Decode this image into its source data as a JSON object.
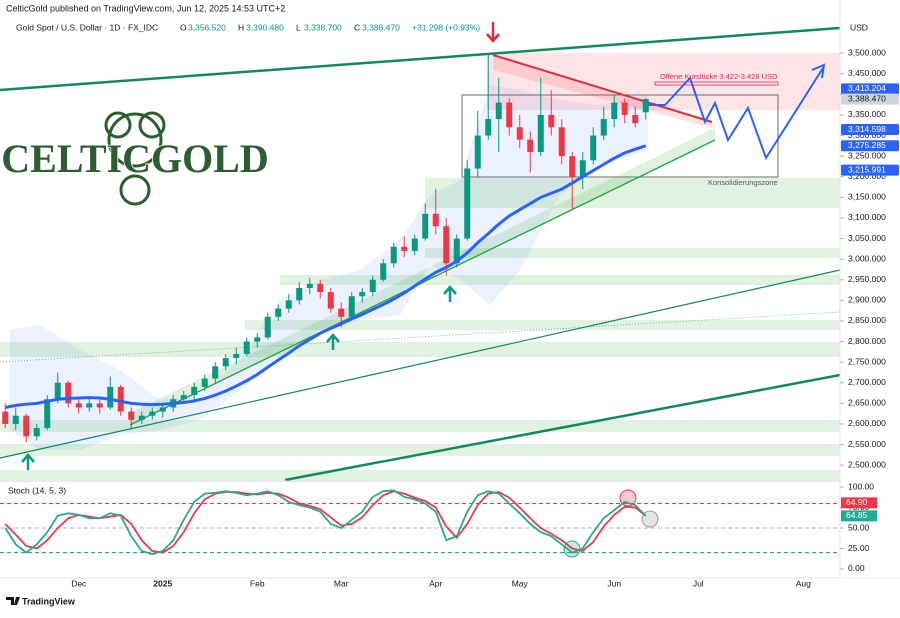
{
  "header": {
    "published": "CelticGold published on TradingView.com, Jun 12, 2025 14:53 UTC+2",
    "legend_title": "Gold Spot / U.S. Dollar · 1D · FX_IDC",
    "ohlc": [
      {
        "key": "O",
        "label": "3,356.520"
      },
      {
        "key": "H",
        "label": "3,390.480"
      },
      {
        "key": "L",
        "label": "3,338.700"
      },
      {
        "key": "C",
        "label": "3,388.470"
      }
    ],
    "change": "+31.298 (+0.93%)",
    "currency": "USD"
  },
  "logo": "CELTICGOLD",
  "footer": "TradingView",
  "chart_data": {
    "type": "candlestick",
    "categories": [
      null,
      null,
      null,
      null,
      null,
      null,
      null,
      "Dec",
      null,
      null,
      null,
      null,
      null,
      null,
      null,
      "2025",
      null,
      null,
      null,
      null,
      null,
      null,
      null,
      null,
      "Feb",
      null,
      null,
      null,
      null,
      null,
      null,
      null,
      "Mar",
      null,
      null,
      null,
      null,
      null,
      null,
      null,
      null,
      "Apr",
      null,
      null,
      null,
      null,
      null,
      null,
      null,
      "May",
      null,
      null,
      null,
      null,
      null,
      null,
      null,
      null,
      "Jun",
      null,
      null,
      null,
      null,
      null,
      null,
      null,
      "Jul",
      null,
      null,
      null,
      null,
      null,
      null,
      null,
      null,
      null,
      "Aug",
      null,
      null,
      null
    ],
    "candles": {
      "up_color": "#089981",
      "down_color": "#f23645",
      "open": [
        2630,
        2600,
        2620,
        2570,
        2590,
        2660,
        2700,
        2650,
        2640,
        2650,
        2640,
        2690,
        2630,
        2610,
        2620,
        2630,
        2640,
        2660,
        2670,
        2690,
        2710,
        2740,
        2760,
        2770,
        2800,
        2810,
        2860,
        2880,
        2900,
        2930,
        2940,
        2920,
        2880,
        2860,
        2910,
        2920,
        2950,
        2990,
        3030,
        3020,
        3050,
        3110,
        3080,
        2990,
        3050,
        3220,
        3300,
        3340,
        3380,
        3320,
        3290,
        3260,
        3350,
        3320,
        3250,
        3200,
        3240,
        3300,
        3340,
        3380,
        3350,
        3356.52,
        null,
        null,
        null,
        null,
        null,
        null,
        null,
        null,
        null,
        null,
        null,
        null,
        null,
        null,
        null,
        null,
        null,
        null
      ],
      "high": [
        2650,
        2640,
        2625,
        2600,
        2670,
        2725,
        2705,
        2665,
        2665,
        2660,
        2715,
        2695,
        2640,
        2630,
        2640,
        2650,
        2670,
        2680,
        2700,
        2720,
        2750,
        2770,
        2785,
        2810,
        2820,
        2870,
        2890,
        2915,
        2945,
        2955,
        2950,
        2930,
        2895,
        2920,
        2930,
        2960,
        3000,
        3040,
        3055,
        3060,
        3135,
        3170,
        3100,
        3060,
        3240,
        3360,
        3500,
        3440,
        3390,
        3350,
        3310,
        3440,
        3410,
        3340,
        3260,
        3260,
        3320,
        3370,
        3400,
        3390,
        3370,
        3390.48,
        null,
        null,
        null,
        null,
        null,
        null,
        null,
        null,
        null,
        null,
        null,
        null,
        null,
        null,
        null,
        null,
        null,
        null
      ],
      "low": [
        2590,
        2585,
        2555,
        2560,
        2585,
        2650,
        2640,
        2625,
        2630,
        2625,
        2635,
        2620,
        2590,
        2600,
        2610,
        2615,
        2630,
        2650,
        2660,
        2680,
        2700,
        2730,
        2745,
        2765,
        2785,
        2805,
        2850,
        2870,
        2890,
        2915,
        2905,
        2870,
        2835,
        2855,
        2895,
        2910,
        2945,
        2980,
        3005,
        3010,
        3045,
        3060,
        2960,
        2980,
        3045,
        3200,
        3290,
        3260,
        3300,
        3270,
        3210,
        3250,
        3300,
        3230,
        3120,
        3170,
        3230,
        3290,
        3320,
        3330,
        3320,
        3338.7,
        null,
        null,
        null,
        null,
        null,
        null,
        null,
        null,
        null,
        null,
        null,
        null,
        null,
        null,
        null,
        null,
        null,
        null
      ],
      "close": [
        2600,
        2620,
        2570,
        2590,
        2660,
        2700,
        2650,
        2640,
        2650,
        2640,
        2690,
        2630,
        2610,
        2620,
        2630,
        2640,
        2660,
        2670,
        2690,
        2710,
        2740,
        2760,
        2770,
        2800,
        2810,
        2860,
        2880,
        2900,
        2930,
        2940,
        2920,
        2880,
        2860,
        2910,
        2920,
        2950,
        2990,
        3030,
        3020,
        3050,
        3110,
        3080,
        2990,
        3050,
        3220,
        3300,
        3340,
        3380,
        3320,
        3290,
        3260,
        3350,
        3320,
        3250,
        3200,
        3240,
        3300,
        3340,
        3380,
        3350,
        3330,
        3388.47,
        null,
        null,
        null,
        null,
        null,
        null,
        null,
        null,
        null,
        null,
        null,
        null,
        null,
        null,
        null,
        null,
        null,
        null
      ]
    },
    "sma": {
      "color": "#2962ff",
      "values": [
        2640,
        2645,
        2648,
        2650,
        2655,
        2660,
        2662,
        2663,
        2664,
        2663,
        2660,
        2655,
        2650,
        2648,
        2647,
        2648,
        2650,
        2652,
        2656,
        2662,
        2670,
        2680,
        2692,
        2705,
        2720,
        2738,
        2755,
        2772,
        2790,
        2805,
        2820,
        2832,
        2843,
        2855,
        2866,
        2878,
        2890,
        2903,
        2918,
        2935,
        2952,
        2968,
        2980,
        2995,
        3015,
        3040,
        3062,
        3085,
        3105,
        3120,
        3135,
        3150,
        3160,
        3170,
        3185,
        3200,
        3215,
        3230,
        3245,
        3258,
        3267,
        3275.285,
        null,
        null,
        null,
        null,
        null,
        null,
        null,
        null,
        null,
        null,
        null,
        null,
        null,
        null,
        null,
        null,
        null,
        null
      ]
    },
    "ylim": [
      2464,
      3629
    ],
    "yticks": [
      {
        "value": 2500,
        "label": "2,500.000"
      },
      {
        "value": 2550,
        "label": "2,550.000"
      },
      {
        "value": 2600,
        "label": "2,600.000"
      },
      {
        "value": 2650,
        "label": "2,650.000"
      },
      {
        "value": 2700,
        "label": "2,700.000"
      },
      {
        "value": 2750,
        "label": "2,750.000"
      },
      {
        "value": 2800,
        "label": "2,800.000"
      },
      {
        "value": 2850,
        "label": "2,850.000"
      },
      {
        "value": 2900,
        "label": "2,900.000"
      },
      {
        "value": 2950,
        "label": "2,950.000"
      },
      {
        "value": 3000,
        "label": "3,000.000"
      },
      {
        "value": 3050,
        "label": "3,050.000"
      },
      {
        "value": 3100,
        "label": "3,100.000"
      },
      {
        "value": 3150,
        "label": "3,150.000"
      },
      {
        "value": 3200,
        "label": "3,200.000"
      },
      {
        "value": 3250,
        "label": "3,250.000"
      },
      {
        "value": 3300,
        "label": "3,300.000"
      },
      {
        "value": 3350,
        "label": "3,350.000"
      },
      {
        "value": 3400,
        "label": "3,400.000"
      },
      {
        "value": 3450,
        "label": "3,450.000"
      },
      {
        "value": 3500,
        "label": "3,500.000"
      }
    ],
    "price_labels": [
      {
        "value": 3413.204,
        "label": "3,413.204",
        "color": "#2962ff",
        "text_color": "#ffffff"
      },
      {
        "value": 3388.47,
        "label": "3,388.470",
        "color": "#d1d4dc",
        "text_color": "#131722"
      },
      {
        "value": 3314.598,
        "label": "3,314.598",
        "color": "#2962ff",
        "text_color": "#ffffff"
      },
      {
        "value": 3275.285,
        "label": "3,275.285",
        "color": "#2962ff",
        "text_color": "#ffffff"
      },
      {
        "value": 3215.991,
        "label": "3,215.991",
        "color": "#2962ff",
        "text_color": "#ffffff"
      }
    ],
    "annotations": {
      "gap": "Offene Kurslücke 3.422-3.428 USD",
      "zone": "Konsolidierungszone"
    },
    "stoch": {
      "title": "Stoch (14, 5, 3)",
      "ylim": [
        -11,
        105
      ],
      "yticks": [
        {
          "value": 100,
          "label": "100.00"
        },
        {
          "value": 75,
          "label": "75.00"
        },
        {
          "value": 50,
          "label": "50.00"
        },
        {
          "value": 25,
          "label": "25.00"
        },
        {
          "value": 0,
          "label": "0.00"
        }
      ],
      "bands": [
        80,
        50,
        20
      ],
      "band_colors": [
        "#f23645",
        "#b2b5be",
        "#089981"
      ],
      "k": {
        "color": "#22ab94",
        "values": [
          50,
          30,
          20,
          30,
          45,
          65,
          68,
          66,
          62,
          62,
          68,
          65,
          40,
          22,
          18,
          22,
          35,
          60,
          82,
          92,
          93,
          95,
          93,
          90,
          92,
          95,
          90,
          82,
          78,
          75,
          70,
          55,
          50,
          60,
          70,
          88,
          95,
          96,
          88,
          85,
          80,
          70,
          35,
          40,
          70,
          90,
          95,
          92,
          80,
          68,
          55,
          45,
          40,
          30,
          20,
          25,
          45,
          62,
          72,
          82,
          78,
          64.85,
          null,
          null,
          null,
          null,
          null,
          null,
          null,
          null,
          null,
          null,
          null,
          null,
          null,
          null,
          null,
          null,
          null,
          null
        ]
      },
      "d": {
        "color": "#f23645",
        "last_label": "64.90",
        "values": [
          55,
          42,
          28,
          25,
          35,
          50,
          62,
          66,
          64,
          62,
          64,
          66,
          55,
          35,
          22,
          20,
          28,
          45,
          68,
          85,
          92,
          94,
          94,
          92,
          91,
          93,
          92,
          87,
          80,
          77,
          73,
          63,
          53,
          55,
          63,
          78,
          90,
          95,
          92,
          87,
          83,
          75,
          52,
          38,
          55,
          78,
          92,
          94,
          87,
          75,
          62,
          50,
          43,
          35,
          25,
          22,
          33,
          52,
          66,
          76,
          75,
          64.9,
          null,
          null,
          null,
          null,
          null,
          null,
          null,
          null,
          null,
          null,
          null,
          null,
          null,
          null,
          null,
          null,
          null,
          null
        ]
      }
    }
  }
}
